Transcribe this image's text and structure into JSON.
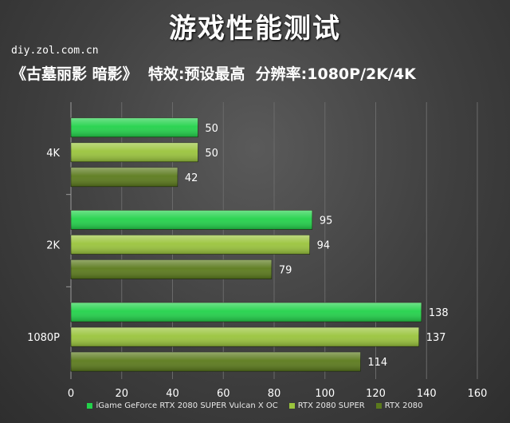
{
  "title": "游戏性能测试",
  "source": "diy.zol.com.cn",
  "subtitle": "《古墓丽影 暗影》  特效:预设最高  分辨率:1080P/2K/4K",
  "chart_data": {
    "type": "bar",
    "orientation": "horizontal",
    "categories": [
      "4K",
      "2K",
      "1080P"
    ],
    "series": [
      {
        "name": "iGame GeForce RTX 2080 SUPER Vulcan X OC",
        "values": [
          50,
          95,
          138
        ],
        "color": "#22d24a"
      },
      {
        "name": "RTX 2080 SUPER",
        "values": [
          50,
          94,
          137
        ],
        "color": "#9ac43c"
      },
      {
        "name": "RTX 2080",
        "values": [
          42,
          79,
          114
        ],
        "color": "#5b7a1c"
      }
    ],
    "x_ticks": [
      "0",
      "20",
      "40",
      "60",
      "80",
      "100",
      "120",
      "140",
      "160"
    ],
    "xlim": [
      0,
      160
    ],
    "grid": true,
    "legend_position": "bottom"
  }
}
